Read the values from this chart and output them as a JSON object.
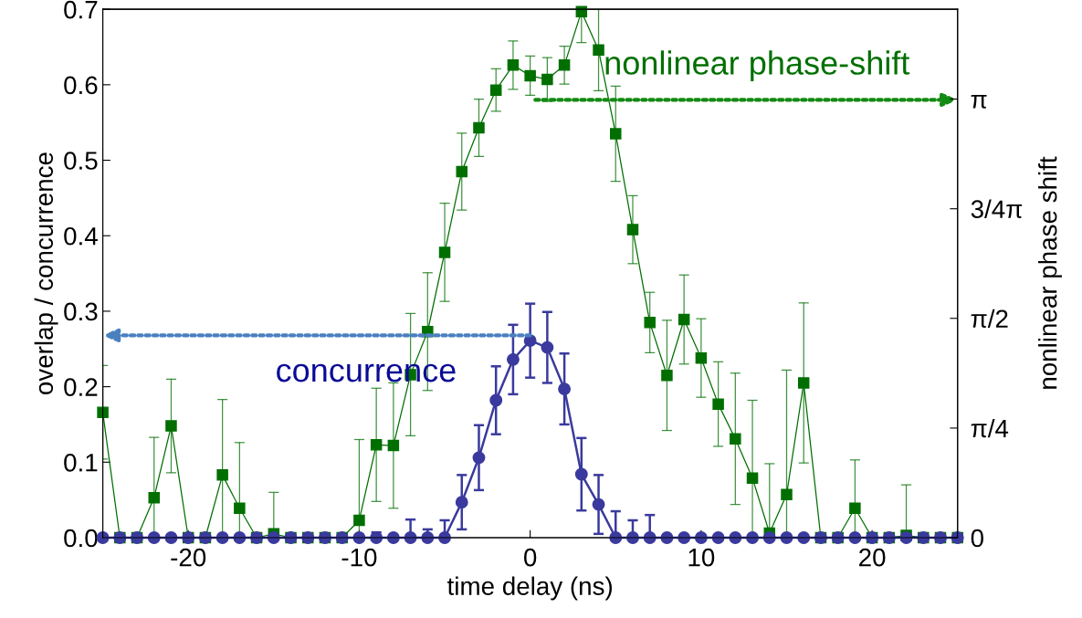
{
  "chart_data": {
    "type": "line",
    "xlabel": "time delay (ns)",
    "ylabel": "overlap / concurrence",
    "y2label": "nonlinear phase shift",
    "x": [
      -25,
      -24,
      -23,
      -22,
      -21,
      -20,
      -19,
      -18,
      -17,
      -16,
      -15,
      -14,
      -13,
      -12,
      -11,
      -10,
      -9,
      -8,
      -7,
      -6,
      -5,
      -4,
      -3,
      -2,
      -1,
      0,
      1,
      2,
      3,
      4,
      5,
      6,
      7,
      8,
      9,
      10,
      11,
      12,
      13,
      14,
      15,
      16,
      17,
      18,
      19,
      20,
      21,
      22,
      23,
      24,
      25
    ],
    "series": [
      {
        "color": "#006f00",
        "marker": "square",
        "values": [
          0.166,
          0,
          0,
          0.053,
          0.148,
          0,
          0,
          0.083,
          0.039,
          0,
          0.005,
          0,
          0,
          0,
          0,
          0.023,
          0.123,
          0.122,
          0.216,
          0.273,
          0.378,
          0.485,
          0.543,
          0.593,
          0.626,
          0.612,
          0.607,
          0.626,
          0.697,
          0.646,
          0.535,
          0.408,
          0.285,
          0.215,
          0.289,
          0.238,
          0.177,
          0.131,
          0.079,
          0.006,
          0.057,
          0.205,
          0,
          0,
          0.039,
          0,
          0,
          0.003,
          0,
          0,
          0
        ],
        "errors": [
          0.062,
          null,
          null,
          0.08,
          0.062,
          null,
          null,
          0.1,
          0.087,
          null,
          0.055,
          null,
          null,
          null,
          null,
          0.107,
          0.075,
          0.083,
          0.081,
          0.078,
          0.065,
          0.051,
          0.038,
          0.028,
          0.032,
          0.026,
          0.029,
          0.025,
          [
            0.656,
            0.7
          ],
          0.054,
          0.063,
          0.045,
          0.04,
          0.073,
          0.059,
          0.052,
          0.056,
          0.087,
          0.103,
          0.092,
          0.165,
          0.106,
          null,
          null,
          0.064,
          null,
          null,
          0.067,
          null,
          null,
          null
        ]
      },
      {
        "color": "#3a3a9e",
        "marker": "circle",
        "values": [
          0,
          0,
          0,
          0,
          0,
          0,
          0,
          0,
          0,
          0,
          0,
          0,
          0,
          0,
          0,
          0,
          0,
          0,
          0,
          0,
          0,
          0.047,
          0.106,
          0.182,
          0.236,
          0.261,
          0.252,
          0.197,
          0.084,
          0.044,
          0,
          0,
          0,
          0,
          0,
          0,
          0,
          0,
          0,
          0,
          0,
          0,
          0,
          0,
          0,
          0,
          0,
          0,
          0,
          0,
          0
        ],
        "errors": [
          null,
          null,
          null,
          null,
          null,
          null,
          null,
          null,
          null,
          null,
          null,
          null,
          null,
          null,
          null,
          null,
          0.007,
          null,
          0.024,
          0.011,
          0.023,
          0.036,
          0.043,
          0.045,
          0.046,
          0.049,
          0.047,
          0.047,
          0.048,
          0.039,
          0.035,
          0.023,
          0.03,
          null,
          null,
          null,
          null,
          null,
          null,
          null,
          null,
          null,
          null,
          null,
          null,
          null,
          null,
          null,
          null,
          null,
          null
        ]
      }
    ],
    "annotations": [
      {
        "text": "nonlinear phase-shift",
        "x": 0.3,
        "y": 0.58
      },
      {
        "text": "concurrence",
        "x": 0,
        "y": 0.268
      }
    ],
    "xlim": [
      -25,
      25
    ],
    "xticks": [
      -20,
      -10,
      0,
      10,
      20
    ],
    "ylim": [
      0,
      0.7
    ],
    "yticks": [
      {
        "value": 0,
        "label": "0.0"
      },
      0.1,
      0.2,
      0.3,
      0.4,
      0.5,
      0.6,
      0.7
    ],
    "y2lim": [
      0,
      3.785
    ],
    "y2ticks": [
      0,
      {
        "value": 0.785,
        "label": "π/4"
      },
      {
        "value": 1.571,
        "label": "π/2"
      },
      {
        "value": 2.356,
        "label": "3/4π"
      },
      {
        "value": 3.142,
        "label": "π"
      }
    ],
    "grid": false,
    "legend": false
  }
}
